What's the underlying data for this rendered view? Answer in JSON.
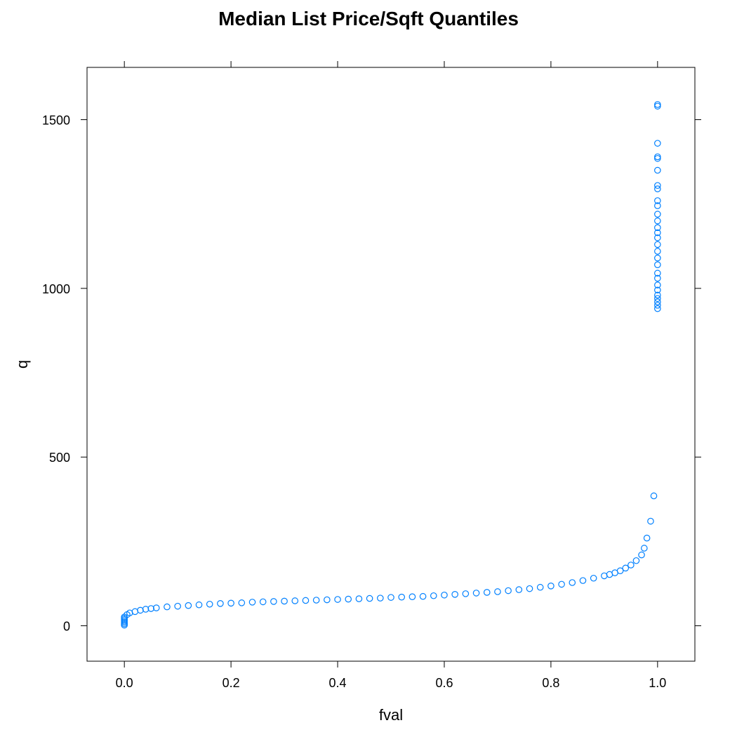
{
  "chart_data": {
    "type": "scatter",
    "title": "Median List Price/Sqft Quantiles",
    "xlabel": "fval",
    "ylabel": "q",
    "xlim": [
      -0.07,
      1.07
    ],
    "ylim": [
      -105,
      1655
    ],
    "x_ticks": [
      "0.0",
      "0.2",
      "0.4",
      "0.6",
      "0.8",
      "1.0"
    ],
    "x_tick_values": [
      0,
      0.2,
      0.4,
      0.6,
      0.8,
      1.0
    ],
    "y_ticks": [
      "0",
      "500",
      "1000",
      "1500"
    ],
    "y_tick_values": [
      0,
      500,
      1000,
      1500
    ],
    "grid": false,
    "point_color": "#0080ff",
    "series": [
      {
        "points": [
          [
            0.0,
            2
          ],
          [
            0.0,
            6
          ],
          [
            0.0,
            10
          ],
          [
            0.0,
            14
          ],
          [
            0.0,
            18
          ],
          [
            0.0,
            22
          ],
          [
            0.0,
            26
          ],
          [
            0.005,
            33
          ],
          [
            0.01,
            38
          ],
          [
            0.02,
            42
          ],
          [
            0.03,
            46
          ],
          [
            0.04,
            49
          ],
          [
            0.05,
            51
          ],
          [
            0.06,
            53
          ],
          [
            0.08,
            56
          ],
          [
            0.1,
            58
          ],
          [
            0.12,
            60
          ],
          [
            0.14,
            62
          ],
          [
            0.16,
            64
          ],
          [
            0.18,
            66
          ],
          [
            0.2,
            67
          ],
          [
            0.22,
            68
          ],
          [
            0.24,
            70
          ],
          [
            0.26,
            71
          ],
          [
            0.28,
            72
          ],
          [
            0.3,
            73
          ],
          [
            0.32,
            74
          ],
          [
            0.34,
            75
          ],
          [
            0.36,
            76
          ],
          [
            0.38,
            77
          ],
          [
            0.4,
            78
          ],
          [
            0.42,
            79
          ],
          [
            0.44,
            80
          ],
          [
            0.46,
            81
          ],
          [
            0.48,
            82
          ],
          [
            0.5,
            84
          ],
          [
            0.52,
            85
          ],
          [
            0.54,
            86
          ],
          [
            0.56,
            87
          ],
          [
            0.58,
            89
          ],
          [
            0.6,
            91
          ],
          [
            0.62,
            93
          ],
          [
            0.64,
            95
          ],
          [
            0.66,
            97
          ],
          [
            0.68,
            99
          ],
          [
            0.7,
            101
          ],
          [
            0.72,
            104
          ],
          [
            0.74,
            107
          ],
          [
            0.76,
            110
          ],
          [
            0.78,
            114
          ],
          [
            0.8,
            118
          ],
          [
            0.82,
            123
          ],
          [
            0.84,
            128
          ],
          [
            0.86,
            134
          ],
          [
            0.88,
            141
          ],
          [
            0.9,
            148
          ],
          [
            0.91,
            152
          ],
          [
            0.92,
            157
          ],
          [
            0.93,
            163
          ],
          [
            0.94,
            171
          ],
          [
            0.95,
            180
          ],
          [
            0.96,
            193
          ],
          [
            0.97,
            210
          ],
          [
            0.975,
            230
          ],
          [
            0.98,
            260
          ],
          [
            0.987,
            310
          ],
          [
            0.993,
            385
          ],
          [
            1.0,
            940
          ],
          [
            1.0,
            950
          ],
          [
            1.0,
            960
          ],
          [
            1.0,
            970
          ],
          [
            1.0,
            980
          ],
          [
            1.0,
            995
          ],
          [
            1.0,
            1010
          ],
          [
            1.0,
            1030
          ],
          [
            1.0,
            1045
          ],
          [
            1.0,
            1070
          ],
          [
            1.0,
            1090
          ],
          [
            1.0,
            1110
          ],
          [
            1.0,
            1130
          ],
          [
            1.0,
            1150
          ],
          [
            1.0,
            1165
          ],
          [
            1.0,
            1180
          ],
          [
            1.0,
            1200
          ],
          [
            1.0,
            1220
          ],
          [
            1.0,
            1245
          ],
          [
            1.0,
            1260
          ],
          [
            1.0,
            1295
          ],
          [
            1.0,
            1305
          ],
          [
            1.0,
            1350
          ],
          [
            1.0,
            1385
          ],
          [
            1.0,
            1390
          ],
          [
            1.0,
            1430
          ],
          [
            1.0,
            1540
          ],
          [
            1.0,
            1545
          ]
        ]
      }
    ]
  }
}
